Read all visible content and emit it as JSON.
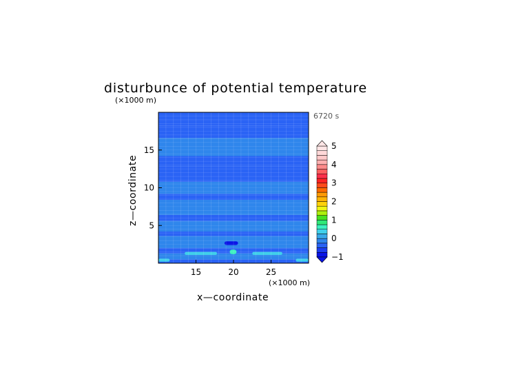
{
  "chart_data": {
    "type": "heatmap",
    "title": "disturbunce of potential temperature",
    "xlabel": "x—coordinate",
    "ylabel": "z—coordinate",
    "x_unit": "(×1000 m)",
    "y_unit": "(×1000 m)",
    "time_label": "6720 s",
    "xlim": [
      10,
      30
    ],
    "ylim": [
      0,
      20
    ],
    "x_ticks": [
      15,
      20,
      25
    ],
    "y_ticks": [
      5,
      10,
      15
    ],
    "grid": true,
    "colorbar": {
      "ticks": [
        -1,
        0,
        1,
        2,
        3,
        4,
        5
      ],
      "levels": [
        -1,
        -0.75,
        -0.5,
        -0.25,
        0,
        0.25,
        0.5,
        0.75,
        1,
        1.25,
        1.5,
        1.75,
        2,
        2.25,
        2.5,
        2.75,
        3,
        3.25,
        3.5,
        3.75,
        4,
        4.25,
        4.5,
        4.75,
        5
      ],
      "colors": [
        "#0a14e6",
        "#1c3df0",
        "#2a63f5",
        "#2f86ec",
        "#38a8e8",
        "#40d0ea",
        "#3cf0c0",
        "#30e878",
        "#49e021",
        "#aef00e",
        "#f0f514",
        "#ffd20a",
        "#ffb405",
        "#ff9a05",
        "#ff6a00",
        "#ff4a1a",
        "#ff2424",
        "#ff2f4a",
        "#ff6060",
        "#ff8a8a",
        "#ffb0b0",
        "#ffc8c8",
        "#ffd8d8",
        "#ffe6e6"
      ],
      "extend": "both"
    },
    "bands": [
      {
        "z": [
          0,
          0.5
        ],
        "value": -0.35
      },
      {
        "z": [
          0.5,
          1.3
        ],
        "value": -0.2
      },
      {
        "z": [
          1.3,
          2.0
        ],
        "value": -0.3
      },
      {
        "z": [
          2.0,
          3.6
        ],
        "value": -0.15
      },
      {
        "z": [
          3.6,
          4.2
        ],
        "value": -0.4
      },
      {
        "z": [
          4.2,
          5.6
        ],
        "value": -0.2
      },
      {
        "z": [
          5.6,
          6.4
        ],
        "value": -0.4
      },
      {
        "z": [
          6.4,
          8.4
        ],
        "value": -0.25
      },
      {
        "z": [
          8.4,
          9.2
        ],
        "value": -0.45
      },
      {
        "z": [
          9.2,
          10.8
        ],
        "value": -0.2
      },
      {
        "z": [
          10.8,
          12.8
        ],
        "value": -0.3
      },
      {
        "z": [
          12.8,
          14.2
        ],
        "value": -0.35
      },
      {
        "z": [
          14.2,
          16.6
        ],
        "value": -0.2
      },
      {
        "z": [
          16.6,
          18.2
        ],
        "value": -0.3
      },
      {
        "z": [
          18.2,
          20
        ],
        "value": -0.35
      }
    ],
    "features": [
      {
        "kind": "cell",
        "x": [
          18.8,
          20.6
        ],
        "z": [
          2.4,
          2.9
        ],
        "value": -0.85
      },
      {
        "kind": "cell",
        "x": [
          19.5,
          20.4
        ],
        "z": [
          1.2,
          1.8
        ],
        "value": 0.6
      },
      {
        "kind": "streak",
        "x": [
          13.5,
          17.8
        ],
        "z": [
          1.1,
          1.5
        ],
        "value": 0.45
      },
      {
        "kind": "streak",
        "x": [
          22.5,
          26.5
        ],
        "z": [
          1.1,
          1.5
        ],
        "value": 0.45
      },
      {
        "kind": "streak",
        "x": [
          10,
          11.5
        ],
        "z": [
          0.2,
          0.6
        ],
        "value": 0.45
      },
      {
        "kind": "streak",
        "x": [
          28.3,
          30
        ],
        "z": [
          0.2,
          0.6
        ],
        "value": 0.45
      }
    ]
  }
}
